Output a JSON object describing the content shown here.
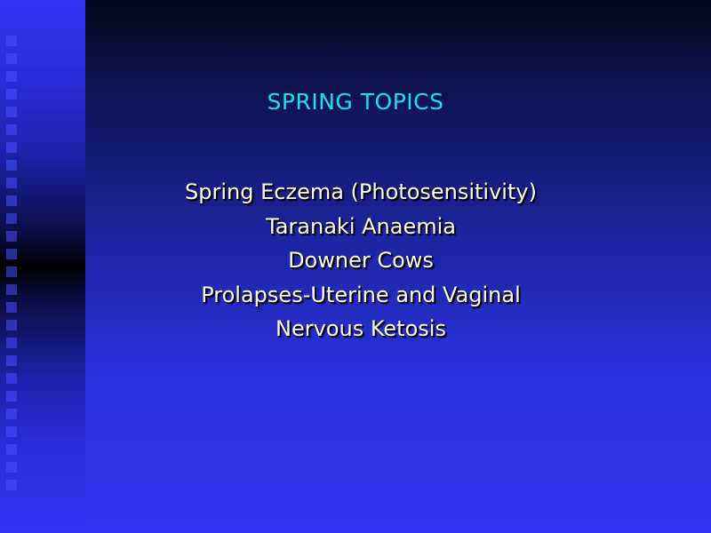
{
  "slide": {
    "title": "SPRING TOPICS",
    "topics": [
      "Spring Eczema (Photosensitivity)",
      "Taranaki Anaemia",
      "Downer Cows",
      "Prolapses-Uterine and Vaginal",
      "Nervous Ketosis"
    ]
  },
  "colors": {
    "title": "#19e0e6",
    "text": "#ffffff",
    "background_top": "#06081c",
    "background_bottom": "#3033f0"
  }
}
